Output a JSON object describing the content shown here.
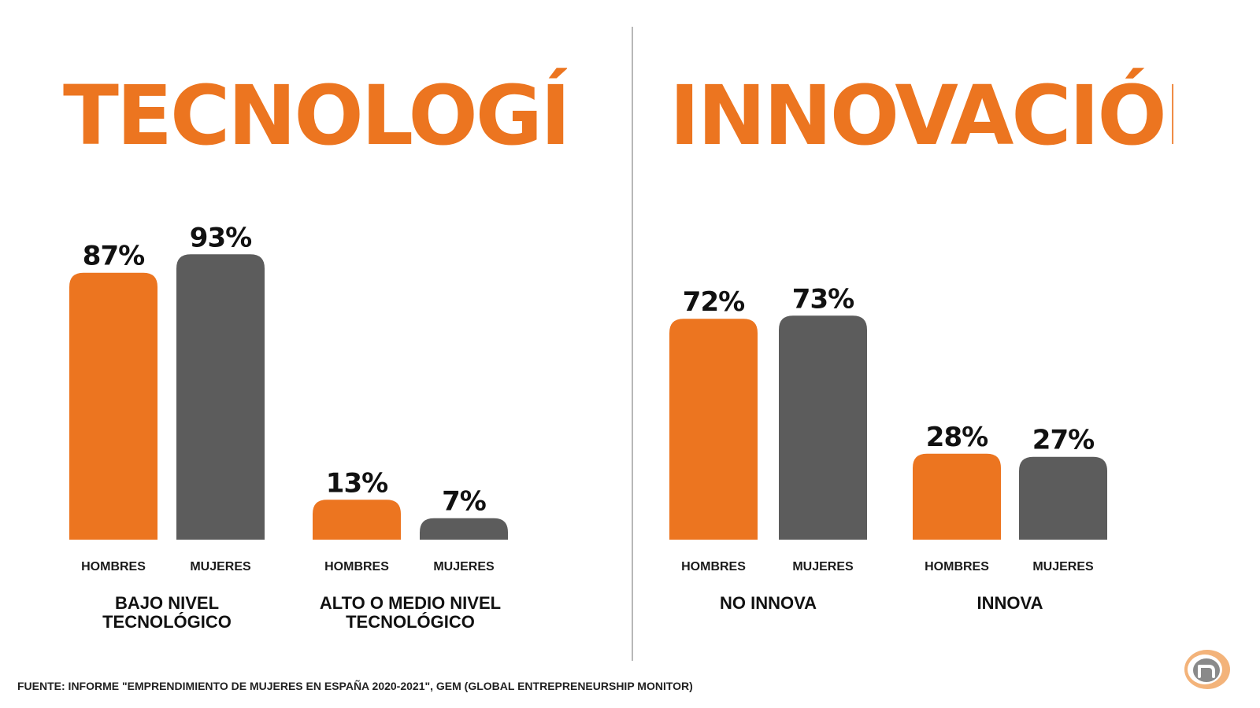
{
  "colors": {
    "hombres": "#ec7520",
    "mujeres": "#5c5c5c",
    "title": "#ec7520"
  },
  "titles": {
    "left": "TECNOLOGÍA",
    "right": "INNOVACIÓN"
  },
  "source": "FUENTE: INFORME \"EMPRENDIMIENTO DE MUJERES EN ESPAÑA 2020-2021\", GEM (GLOBAL ENTREPRENEURSHIP MONITOR)",
  "logo": {
    "icon": "n-logo-icon"
  },
  "chart_data": [
    {
      "type": "bar",
      "title": "TECNOLOGÍA",
      "unit": "%",
      "ylim": [
        0,
        100
      ],
      "bar_labels": [
        "HOMBRES",
        "MUJERES"
      ],
      "groups": [
        {
          "label": [
            "BAJO NIVEL",
            "TECNOLÓGICO"
          ],
          "values": [
            87,
            93
          ]
        },
        {
          "label": [
            "ALTO O MEDIO NIVEL",
            "TECNOLÓGICO"
          ],
          "values": [
            13,
            7
          ]
        }
      ]
    },
    {
      "type": "bar",
      "title": "INNOVACIÓN",
      "unit": "%",
      "ylim": [
        0,
        100
      ],
      "bar_labels": [
        "HOMBRES",
        "MUJERES"
      ],
      "groups": [
        {
          "label": [
            "NO INNOVA"
          ],
          "values": [
            72,
            73
          ]
        },
        {
          "label": [
            "INNOVA"
          ],
          "values": [
            28,
            27
          ]
        }
      ]
    }
  ]
}
